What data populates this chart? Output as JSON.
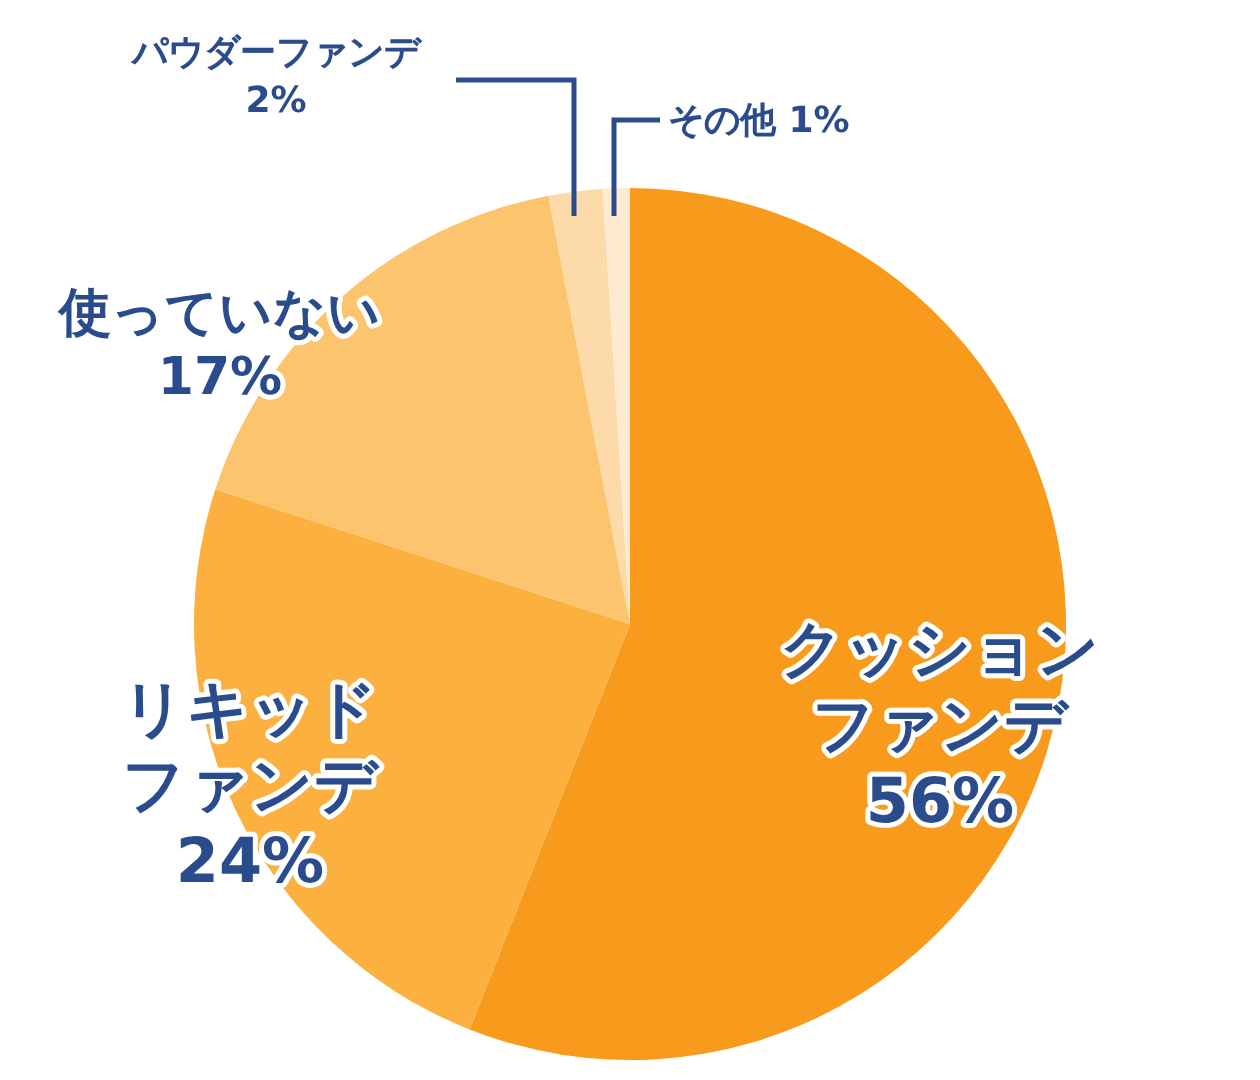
{
  "chart_data": {
    "type": "pie",
    "categories": [
      "クッションファンデ",
      "リキッドファンデ",
      "使っていない",
      "パウダーファンデ",
      "その他"
    ],
    "values": [
      56,
      24,
      17,
      2,
      1
    ],
    "value_labels": [
      "56%",
      "24%",
      "17%",
      "2%",
      "1%"
    ],
    "colors": [
      "#f89a1c",
      "#fbb040",
      "#fdc46e",
      "#fddaa9",
      "#feeacf"
    ]
  }
}
